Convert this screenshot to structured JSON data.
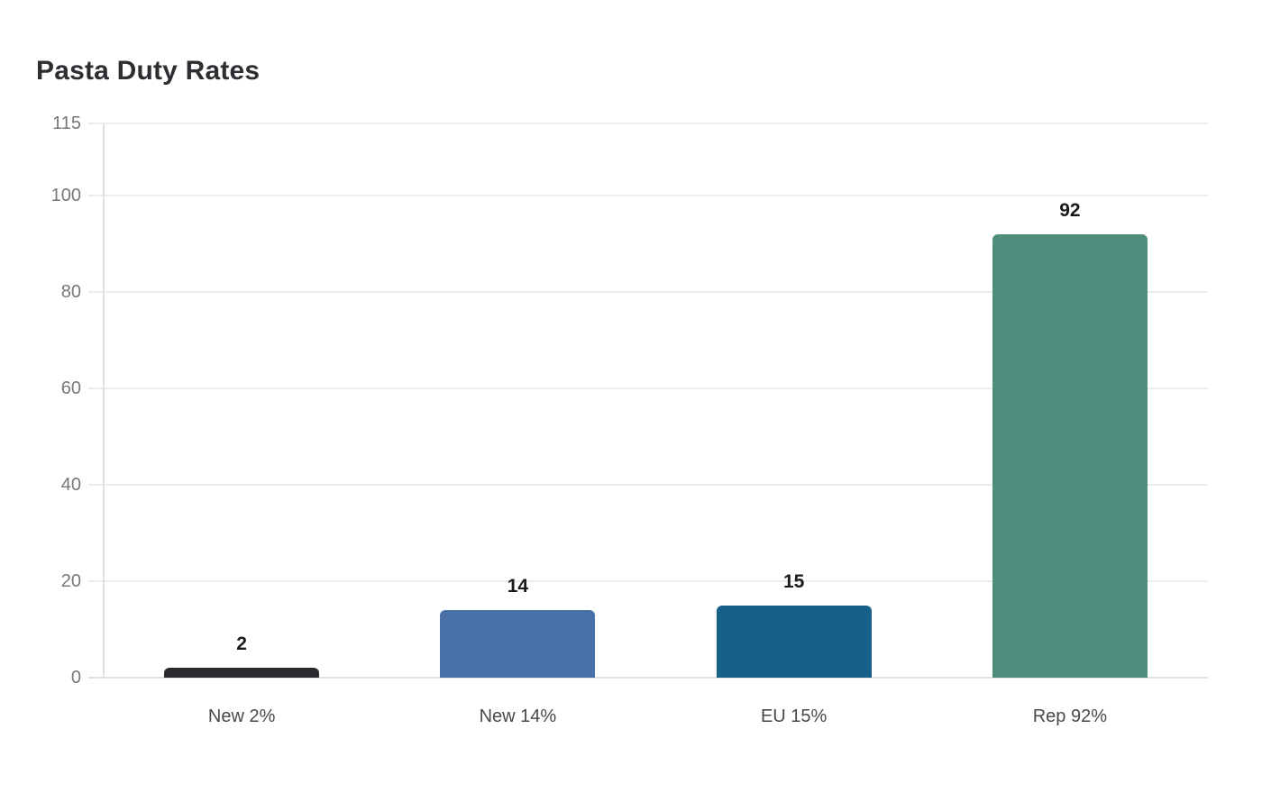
{
  "title": "Pasta Duty Rates",
  "chart_data": {
    "type": "bar",
    "title": "Pasta Duty Rates",
    "categories": [
      "New 2%",
      "New 14%",
      "EU 15%",
      "Rep 92%"
    ],
    "values": [
      2,
      14,
      15,
      92
    ],
    "value_labels": [
      "2",
      "14",
      "15",
      "92"
    ],
    "bar_colors": [
      "#2b2b2f",
      "#4a70a8",
      "#16618a",
      "#4d8e7c"
    ],
    "bar_patterns": [
      "dots",
      "solid",
      "solid",
      "solid"
    ],
    "xlabel": "",
    "ylabel": "",
    "ylim": [
      0,
      115
    ],
    "yticks": [
      0,
      20,
      40,
      60,
      80,
      100,
      115
    ],
    "grid": true,
    "legend": "none"
  },
  "style": {
    "background": "#ffffff",
    "title_color": "#2c2e31",
    "grid_color": "#ececec",
    "axis_color": "#e0e0e0",
    "ytick_color": "#75787b",
    "xlabel_color": "#47494c",
    "value_label_color": "#1a1a1c"
  }
}
